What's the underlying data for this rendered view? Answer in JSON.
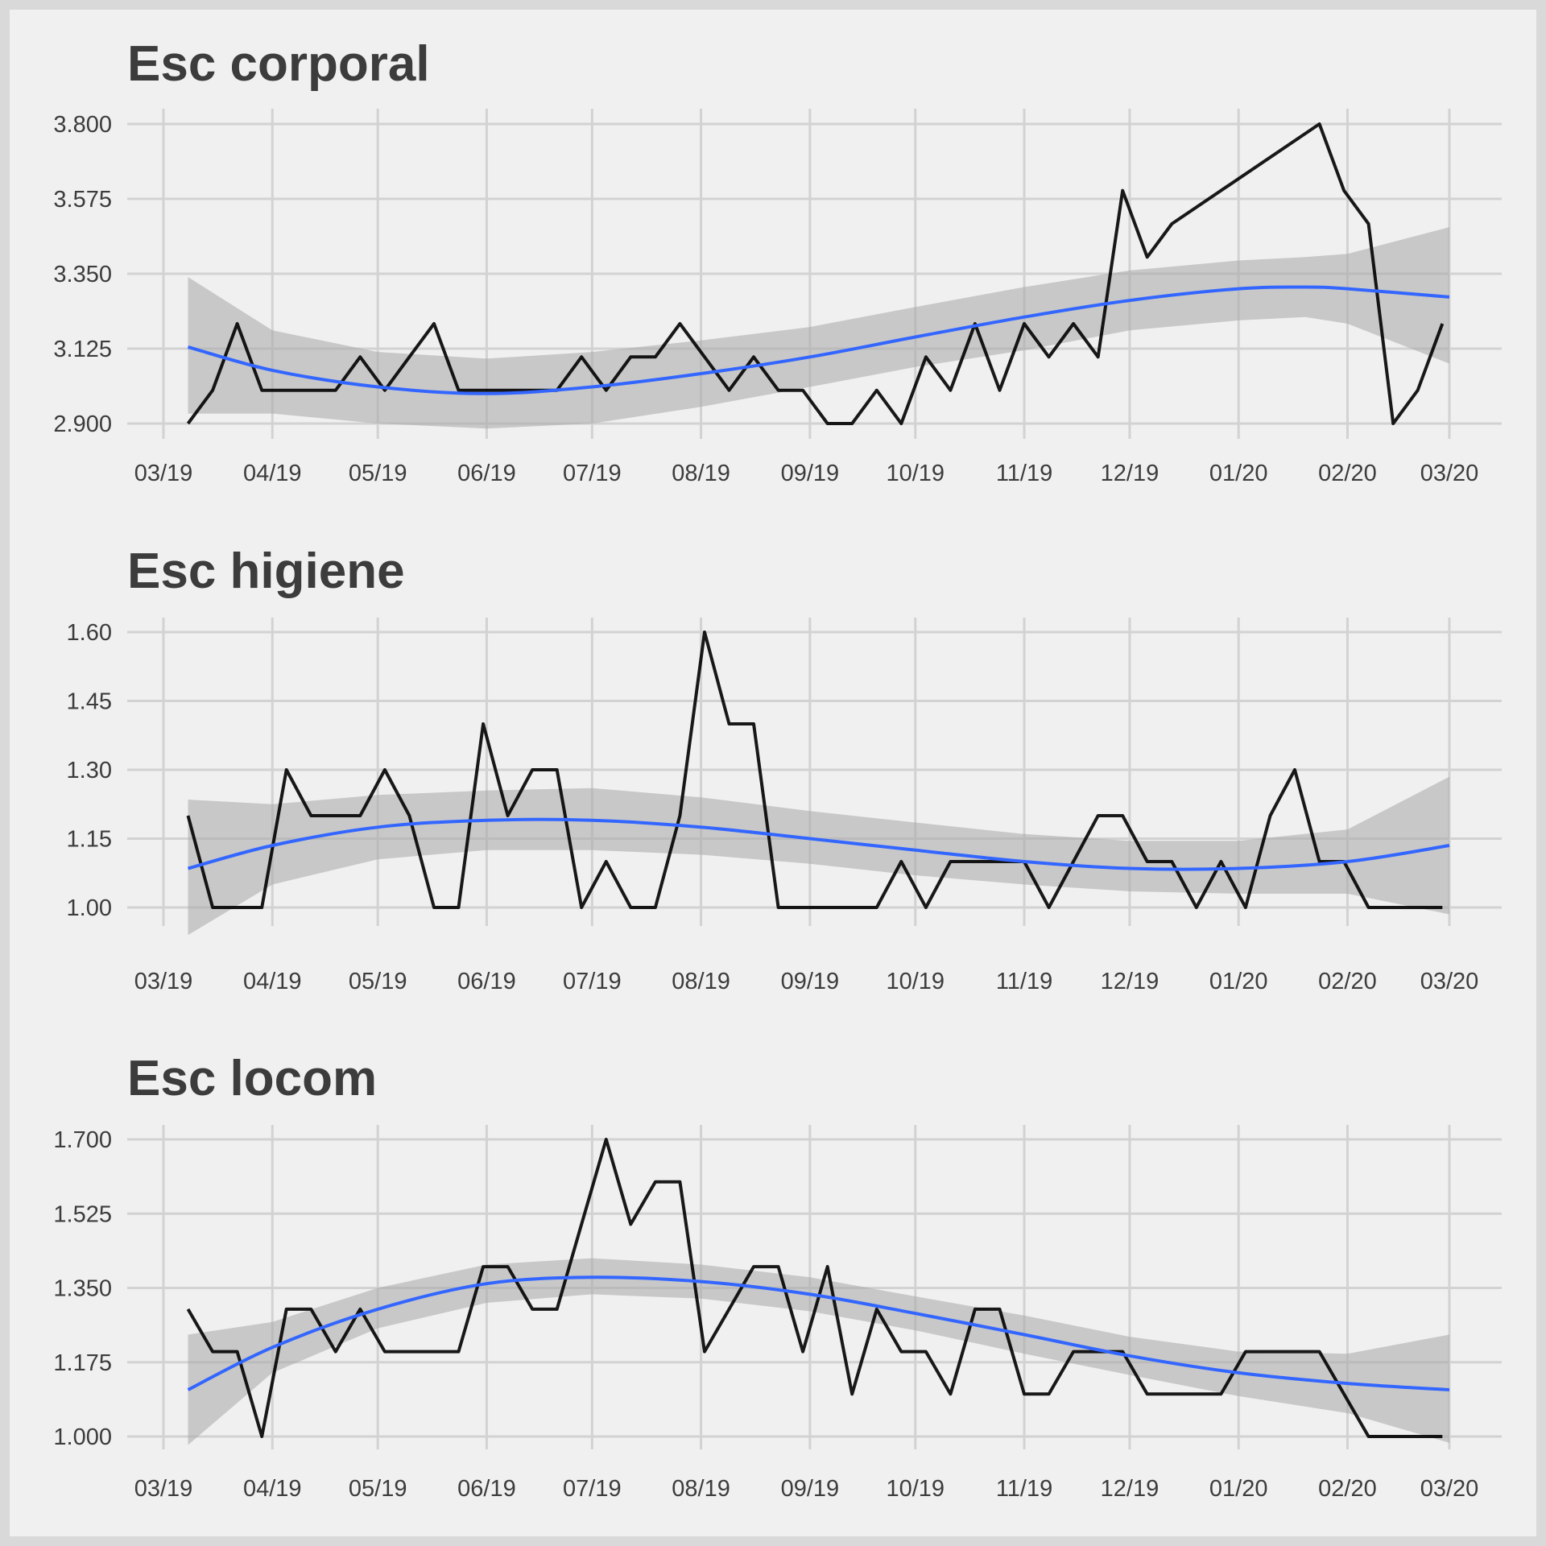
{
  "colors": {
    "page_background": "#f0f0f0",
    "border": "#d9d9d9",
    "grid": "#d2d2d2",
    "series_line": "#000000",
    "trend_line": "#3366ff",
    "confidence_band": "#a8a8a8",
    "text": "#3c3c3c"
  },
  "x_axis": {
    "type": "date",
    "range": [
      "2019-03-01",
      "2020-03-01"
    ],
    "ticks": [
      {
        "date": "2019-03-01",
        "label": "03/19"
      },
      {
        "date": "2019-04-01",
        "label": "04/19"
      },
      {
        "date": "2019-05-01",
        "label": "05/19"
      },
      {
        "date": "2019-06-01",
        "label": "06/19"
      },
      {
        "date": "2019-07-01",
        "label": "07/19"
      },
      {
        "date": "2019-08-01",
        "label": "08/19"
      },
      {
        "date": "2019-09-01",
        "label": "09/19"
      },
      {
        "date": "2019-10-01",
        "label": "10/19"
      },
      {
        "date": "2019-11-01",
        "label": "11/19"
      },
      {
        "date": "2019-12-01",
        "label": "12/19"
      },
      {
        "date": "2020-01-01",
        "label": "01/20"
      },
      {
        "date": "2020-02-01",
        "label": "02/20"
      },
      {
        "date": "2020-03-01",
        "label": "03/20"
      }
    ]
  },
  "chart_data": [
    {
      "type": "line",
      "title": "Esc corporal",
      "ylim": [
        2.9,
        3.8
      ],
      "yticks": [
        2.9,
        3.125,
        3.35,
        3.575,
        3.8
      ],
      "ytick_labels": [
        "2.900",
        "3.125",
        "3.350",
        "3.575",
        "3.800"
      ],
      "grid": true,
      "series": [
        {
          "x": [
            "2019-03-08",
            "2019-03-15",
            "2019-03-22",
            "2019-03-29",
            "2019-04-05",
            "2019-04-12",
            "2019-04-19",
            "2019-04-26",
            "2019-05-03",
            "2019-05-10",
            "2019-05-17",
            "2019-05-24",
            "2019-05-31",
            "2019-06-07",
            "2019-06-14",
            "2019-06-21",
            "2019-06-28",
            "2019-07-05",
            "2019-07-12",
            "2019-07-19",
            "2019-07-26",
            "2019-08-02",
            "2019-08-09",
            "2019-08-16",
            "2019-08-23",
            "2019-08-30",
            "2019-09-06",
            "2019-09-13",
            "2019-09-20",
            "2019-09-27",
            "2019-10-04",
            "2019-10-11",
            "2019-10-18",
            "2019-10-25",
            "2019-11-01",
            "2019-11-08",
            "2019-11-15",
            "2019-11-22",
            "2019-11-29",
            "2019-12-06",
            "2019-12-13",
            "2020-01-24",
            "2020-01-31",
            "2020-02-07",
            "2020-02-14",
            "2020-02-21",
            "2020-02-28"
          ],
          "y": [
            2.9,
            3.0,
            3.2,
            3.0,
            3.0,
            3.0,
            3.0,
            3.1,
            3.0,
            3.1,
            3.2,
            3.0,
            3.0,
            3.0,
            3.0,
            3.0,
            3.1,
            3.0,
            3.1,
            3.1,
            3.2,
            3.1,
            3.0,
            3.1,
            3.0,
            3.0,
            2.9,
            2.9,
            3.0,
            2.9,
            3.1,
            3.0,
            3.2,
            3.0,
            3.2,
            3.1,
            3.2,
            3.1,
            3.6,
            3.4,
            3.5,
            3.8,
            3.6,
            3.5,
            2.9,
            3.0,
            3.2
          ]
        }
      ],
      "trend": {
        "x": [
          "2019-03-08",
          "2019-04-01",
          "2019-05-01",
          "2019-06-01",
          "2019-07-01",
          "2019-08-01",
          "2019-09-01",
          "2019-10-01",
          "2019-11-01",
          "2019-12-01",
          "2020-01-01",
          "2020-01-20",
          "2020-02-01",
          "2020-03-01"
        ],
        "y": [
          3.13,
          3.06,
          3.01,
          2.99,
          3.01,
          3.05,
          3.1,
          3.16,
          3.22,
          3.27,
          3.305,
          3.31,
          3.305,
          3.28
        ],
        "lower": [
          2.93,
          2.93,
          2.9,
          2.885,
          2.9,
          2.95,
          3.01,
          3.07,
          3.12,
          3.18,
          3.21,
          3.22,
          3.2,
          3.08
        ],
        "upper": [
          3.34,
          3.18,
          3.115,
          3.095,
          3.115,
          3.15,
          3.19,
          3.25,
          3.31,
          3.36,
          3.39,
          3.4,
          3.41,
          3.49
        ]
      }
    },
    {
      "type": "line",
      "title": "Esc higiene",
      "ylim": [
        1.0,
        1.6
      ],
      "yticks": [
        1.0,
        1.15,
        1.3,
        1.45,
        1.6
      ],
      "ytick_labels": [
        "1.00",
        "1.15",
        "1.30",
        "1.45",
        "1.60"
      ],
      "grid": true,
      "series": [
        {
          "x": [
            "2019-03-08",
            "2019-03-15",
            "2019-03-22",
            "2019-03-29",
            "2019-04-05",
            "2019-04-12",
            "2019-04-19",
            "2019-04-26",
            "2019-05-03",
            "2019-05-10",
            "2019-05-17",
            "2019-05-24",
            "2019-05-31",
            "2019-06-07",
            "2019-06-14",
            "2019-06-21",
            "2019-06-28",
            "2019-07-05",
            "2019-07-12",
            "2019-07-19",
            "2019-07-26",
            "2019-08-02",
            "2019-08-09",
            "2019-08-16",
            "2019-08-23",
            "2019-08-30",
            "2019-09-06",
            "2019-09-13",
            "2019-09-20",
            "2019-09-27",
            "2019-10-04",
            "2019-10-11",
            "2019-10-18",
            "2019-10-25",
            "2019-11-01",
            "2019-11-08",
            "2019-11-15",
            "2019-11-22",
            "2019-11-29",
            "2019-12-06",
            "2019-12-13",
            "2019-12-20",
            "2019-12-27",
            "2020-01-03",
            "2020-01-10",
            "2020-01-17",
            "2020-01-24",
            "2020-01-31",
            "2020-02-07",
            "2020-02-14",
            "2020-02-21",
            "2020-02-28"
          ],
          "y": [
            1.2,
            1.0,
            1.0,
            1.0,
            1.3,
            1.2,
            1.2,
            1.2,
            1.3,
            1.2,
            1.0,
            1.0,
            1.4,
            1.2,
            1.3,
            1.3,
            1.0,
            1.1,
            1.0,
            1.0,
            1.2,
            1.6,
            1.4,
            1.4,
            1.0,
            1.0,
            1.0,
            1.0,
            1.0,
            1.1,
            1.0,
            1.1,
            1.1,
            1.1,
            1.1,
            1.0,
            1.1,
            1.2,
            1.2,
            1.1,
            1.1,
            1.0,
            1.1,
            1.0,
            1.2,
            1.3,
            1.1,
            1.1,
            1.0,
            1.0,
            1.0,
            1.0
          ]
        }
      ],
      "trend": {
        "x": [
          "2019-03-08",
          "2019-04-01",
          "2019-05-01",
          "2019-06-01",
          "2019-07-01",
          "2019-08-01",
          "2019-09-01",
          "2019-10-01",
          "2019-11-01",
          "2019-12-01",
          "2020-01-01",
          "2020-02-01",
          "2020-03-01"
        ],
        "y": [
          1.085,
          1.135,
          1.175,
          1.19,
          1.19,
          1.175,
          1.15,
          1.125,
          1.1,
          1.085,
          1.085,
          1.1,
          1.135
        ],
        "lower": [
          0.94,
          1.05,
          1.105,
          1.125,
          1.125,
          1.115,
          1.095,
          1.07,
          1.05,
          1.035,
          1.03,
          1.03,
          0.985
        ],
        "upper": [
          1.235,
          1.225,
          1.245,
          1.255,
          1.26,
          1.24,
          1.21,
          1.185,
          1.16,
          1.145,
          1.145,
          1.17,
          1.285
        ]
      }
    },
    {
      "type": "line",
      "title": "Esc locom",
      "ylim": [
        1.0,
        1.7
      ],
      "yticks": [
        1.0,
        1.175,
        1.35,
        1.525,
        1.7
      ],
      "ytick_labels": [
        "1.000",
        "1.175",
        "1.350",
        "1.525",
        "1.700"
      ],
      "grid": true,
      "series": [
        {
          "x": [
            "2019-03-08",
            "2019-03-15",
            "2019-03-22",
            "2019-03-29",
            "2019-04-05",
            "2019-04-12",
            "2019-04-19",
            "2019-04-26",
            "2019-05-03",
            "2019-05-10",
            "2019-05-17",
            "2019-05-24",
            "2019-05-31",
            "2019-06-07",
            "2019-06-14",
            "2019-06-21",
            "2019-06-28",
            "2019-07-05",
            "2019-07-12",
            "2019-07-19",
            "2019-07-26",
            "2019-08-02",
            "2019-08-09",
            "2019-08-16",
            "2019-08-23",
            "2019-08-30",
            "2019-09-06",
            "2019-09-13",
            "2019-09-20",
            "2019-09-27",
            "2019-10-04",
            "2019-10-11",
            "2019-10-18",
            "2019-10-25",
            "2019-11-01",
            "2019-11-08",
            "2019-11-15",
            "2019-11-22",
            "2019-11-29",
            "2019-12-06",
            "2019-12-13",
            "2019-12-20",
            "2019-12-27",
            "2020-01-03",
            "2020-01-10",
            "2020-01-17",
            "2020-01-24",
            "2020-01-31",
            "2020-02-07",
            "2020-02-14",
            "2020-02-21",
            "2020-02-28"
          ],
          "y": [
            1.3,
            1.2,
            1.2,
            1.0,
            1.3,
            1.3,
            1.2,
            1.3,
            1.2,
            1.2,
            1.2,
            1.2,
            1.4,
            1.4,
            1.3,
            1.3,
            1.5,
            1.7,
            1.5,
            1.6,
            1.6,
            1.2,
            1.3,
            1.4,
            1.4,
            1.2,
            1.4,
            1.1,
            1.3,
            1.2,
            1.2,
            1.1,
            1.3,
            1.3,
            1.1,
            1.1,
            1.2,
            1.2,
            1.2,
            1.1,
            1.1,
            1.1,
            1.1,
            1.2,
            1.2,
            1.2,
            1.2,
            1.1,
            1.0,
            1.0,
            1.0,
            1.0
          ]
        }
      ],
      "trend": {
        "x": [
          "2019-03-08",
          "2019-04-01",
          "2019-05-01",
          "2019-06-01",
          "2019-07-01",
          "2019-08-01",
          "2019-09-01",
          "2019-10-01",
          "2019-11-01",
          "2019-12-01",
          "2020-01-01",
          "2020-02-01",
          "2020-03-01"
        ],
        "y": [
          1.11,
          1.21,
          1.3,
          1.36,
          1.375,
          1.365,
          1.335,
          1.29,
          1.24,
          1.19,
          1.15,
          1.125,
          1.11
        ],
        "lower": [
          0.98,
          1.15,
          1.255,
          1.315,
          1.335,
          1.325,
          1.295,
          1.25,
          1.195,
          1.145,
          1.095,
          1.055,
          0.985
        ],
        "upper": [
          1.24,
          1.27,
          1.35,
          1.405,
          1.42,
          1.405,
          1.375,
          1.33,
          1.285,
          1.235,
          1.2,
          1.195,
          1.24
        ]
      }
    }
  ]
}
